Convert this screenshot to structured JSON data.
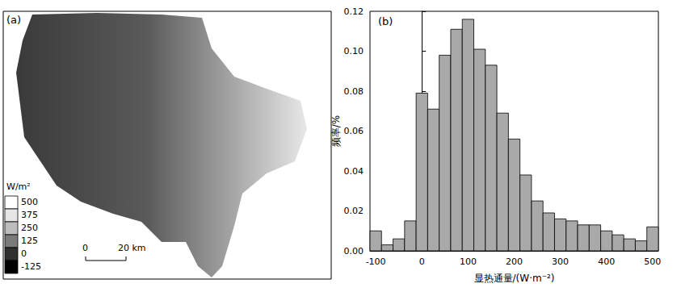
{
  "chart_data": [
    {
      "type": "map",
      "title": "(a)",
      "colorbar": {
        "label": "W/m²",
        "ticks": [
          500,
          375,
          250,
          125,
          0,
          -125
        ],
        "colors": [
          "#ffffff",
          "#e6e6e6",
          "#bdbdbd",
          "#7a7a7a",
          "#303030",
          "#000000"
        ]
      },
      "scale_bar": [
        "0",
        "20 km"
      ]
    },
    {
      "type": "histogram",
      "title": "(b)",
      "xlabel": "显热通量/(W·m⁻²)",
      "ylabel": "频率/%",
      "bins": [
        -112.5,
        -87.5,
        -62.5,
        -37.5,
        -12.5,
        12.5,
        37.5,
        62.5,
        87.5,
        112.5,
        137.5,
        162.5,
        187.5,
        212.5,
        237.5,
        262.5,
        287.5,
        312.5,
        337.5,
        362.5,
        387.5,
        412.5,
        437.5,
        462.5,
        487.5,
        512.5
      ],
      "values": [
        0.01,
        0.003,
        0.006,
        0.015,
        0.079,
        0.071,
        0.098,
        0.111,
        0.116,
        0.101,
        0.093,
        0.069,
        0.056,
        0.038,
        0.025,
        0.019,
        0.016,
        0.015,
        0.013,
        0.013,
        0.01,
        0.008,
        0.006,
        0.005,
        0.012
      ],
      "color": "#a9a9a9",
      "xlim": [
        -112.5,
        512.5
      ],
      "xticks": [
        -100,
        0,
        100,
        200,
        300,
        400,
        500
      ],
      "ylim": [
        0,
        0.12
      ],
      "yticks": [
        {
          "value": 0,
          "label": "0.00"
        },
        {
          "value": 0.02,
          "label": "0.02"
        },
        {
          "value": 0.04,
          "label": "0.04"
        },
        {
          "value": 0.06,
          "label": "0.06"
        },
        {
          "value": 0.08,
          "label": "0.08"
        },
        {
          "value": 0.1,
          "label": "0.10"
        },
        {
          "value": 0.12,
          "label": "0.12"
        }
      ],
      "grid": false
    }
  ]
}
